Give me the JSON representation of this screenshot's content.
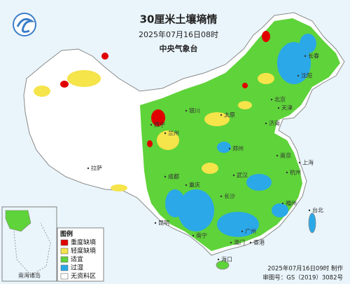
{
  "header": {
    "title": "30厘米土壤墒情",
    "datetime": "2025年07月16日08时",
    "issuer": "中央气象台"
  },
  "legend": {
    "title": "图例",
    "items": [
      {
        "label": "重度缺墒",
        "color": "#e00000"
      },
      {
        "label": "轻度缺墒",
        "color": "#f5e44a"
      },
      {
        "label": "适宜",
        "color": "#5fd33a"
      },
      {
        "label": "过湿",
        "color": "#2aa8e8"
      },
      {
        "label": "无资料区",
        "color": "#ffffff"
      }
    ]
  },
  "inset": {
    "label": "南海诸岛"
  },
  "places": [
    {
      "label": "北京"
    },
    {
      "label": "天津"
    },
    {
      "label": "上海"
    },
    {
      "label": "广州"
    },
    {
      "label": "香港"
    },
    {
      "label": "澳门"
    },
    {
      "label": "台北"
    },
    {
      "label": "济南"
    },
    {
      "label": "郑州"
    },
    {
      "label": "武汉"
    },
    {
      "label": "长沙"
    },
    {
      "label": "重庆"
    },
    {
      "label": "成都"
    },
    {
      "label": "昆明"
    },
    {
      "label": "南宁"
    },
    {
      "label": "海口"
    },
    {
      "label": "拉萨"
    },
    {
      "label": "西宁"
    },
    {
      "label": "兰州"
    },
    {
      "label": "银川"
    },
    {
      "label": "太原"
    },
    {
      "label": "沈阳"
    },
    {
      "label": "长春"
    },
    {
      "label": "南京"
    },
    {
      "label": "杭州"
    },
    {
      "label": "福州"
    }
  ],
  "footer": {
    "made": "2025年07月16日09时 制作",
    "approval": "审图号：GS（2019）3082号"
  }
}
